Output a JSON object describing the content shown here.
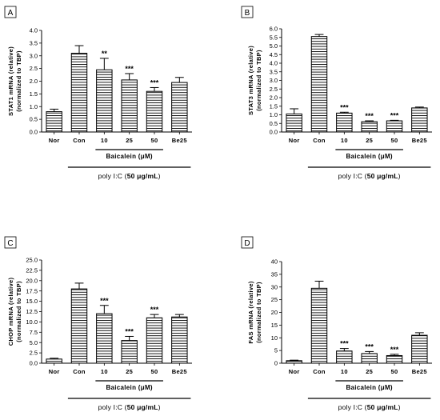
{
  "figure": {
    "group_label": "Baicalein (μM)",
    "treatment_prefix": "poly I:C (",
    "treatment_dose": "50 μg/mL",
    "treatment_suffix": ")",
    "colors": {
      "bar_fill": "#ffffff",
      "bar_stripe": "#000000",
      "axis": "#000000"
    }
  },
  "chart_data": [
    {
      "panel": "A",
      "type": "bar",
      "ylabel_line1": "STAT1 mRNA (relative)",
      "ylabel_line2": "(normalized to TBP)",
      "categories": [
        "Nor",
        "Con",
        "10",
        "25",
        "50",
        "Be25"
      ],
      "values": [
        0.8,
        3.1,
        2.45,
        2.05,
        1.6,
        1.95
      ],
      "errors": [
        0.1,
        0.3,
        0.45,
        0.25,
        0.15,
        0.2
      ],
      "significance": [
        "",
        "",
        "**",
        "***",
        "***",
        ""
      ],
      "ylim": [
        0,
        4.0
      ],
      "yticks": [
        "0.0",
        "0.5",
        "1.0",
        "1.5",
        "2.0",
        "2.5",
        "3.0",
        "3.5",
        "4.0"
      ],
      "grid": false
    },
    {
      "panel": "B",
      "type": "bar",
      "ylabel_line1": "STAT3 mRNA (relative)",
      "ylabel_line2": "(normalized to TBP)",
      "categories": [
        "Nor",
        "Con",
        "10",
        "25",
        "50",
        "Be25"
      ],
      "values": [
        1.05,
        5.55,
        1.1,
        0.6,
        0.65,
        1.4
      ],
      "errors": [
        0.3,
        0.12,
        0.05,
        0.05,
        0.03,
        0.05
      ],
      "significance": [
        "",
        "",
        "***",
        "***",
        "***",
        ""
      ],
      "ylim": [
        0,
        6.0
      ],
      "yticks": [
        "0.0",
        "0.5",
        "1.0",
        "1.5",
        "2.0",
        "2.5",
        "3.0",
        "3.5",
        "4.0",
        "4.5",
        "5.0",
        "5.5",
        "6.0"
      ],
      "grid": false
    },
    {
      "panel": "C",
      "type": "bar",
      "ylabel_line1": "CHOP mRNA (relative)",
      "ylabel_line2": "(normalized to TBP)",
      "categories": [
        "Nor",
        "Con",
        "10",
        "25",
        "50",
        "Be25"
      ],
      "values": [
        1.0,
        18.0,
        12.0,
        5.5,
        11.0,
        11.2
      ],
      "errors": [
        0.2,
        1.4,
        2.0,
        1.0,
        0.8,
        0.6
      ],
      "significance": [
        "",
        "",
        "***",
        "***",
        "***",
        ""
      ],
      "ylim": [
        0,
        25.0
      ],
      "yticks": [
        "0.0",
        "2.5",
        "5.0",
        "7.5",
        "10.0",
        "12.5",
        "15.0",
        "17.5",
        "20.0",
        "22.5",
        "25.0"
      ],
      "grid": false
    },
    {
      "panel": "D",
      "type": "bar",
      "ylabel_line1": "FAS mRNA (relative)",
      "ylabel_line2": "(normalized to TBP)",
      "categories": [
        "Nor",
        "Con",
        "10",
        "25",
        "50",
        "Be25"
      ],
      "values": [
        1.0,
        29.5,
        4.8,
        3.8,
        3.0,
        11.0
      ],
      "errors": [
        0.2,
        2.8,
        1.0,
        0.8,
        0.5,
        1.0
      ],
      "significance": [
        "",
        "",
        "***",
        "***",
        "***",
        ""
      ],
      "ylim": [
        0,
        40
      ],
      "yticks": [
        "0",
        "5",
        "10",
        "15",
        "20",
        "25",
        "30",
        "35",
        "40"
      ],
      "grid": false
    }
  ]
}
